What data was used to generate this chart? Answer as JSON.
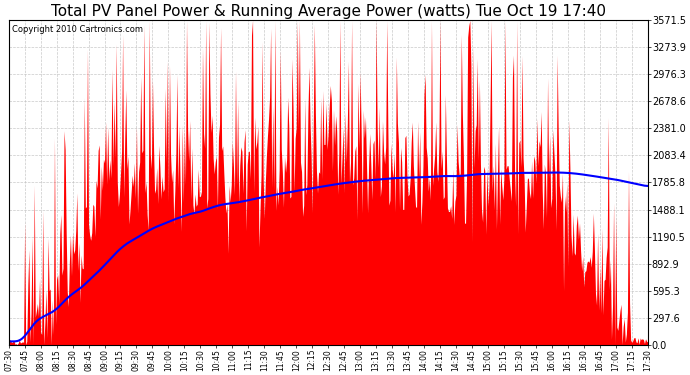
{
  "title": "Total PV Panel Power & Running Average Power (watts) Tue Oct 19 17:40",
  "copyright": "Copyright 2010 Cartronics.com",
  "yticks": [
    0.0,
    297.6,
    595.3,
    892.9,
    1190.5,
    1488.1,
    1785.8,
    2083.4,
    2381.0,
    2678.6,
    2976.3,
    3273.9,
    3571.5
  ],
  "ymax": 3571.5,
  "ymin": 0.0,
  "bar_color": "#FF0000",
  "line_color": "#0000FF",
  "bg_color": "#FFFFFF",
  "title_fontsize": 11,
  "xtick_labels": [
    "07:30",
    "07:45",
    "08:00",
    "08:15",
    "08:30",
    "08:45",
    "09:00",
    "09:15",
    "09:30",
    "09:45",
    "10:00",
    "10:15",
    "10:30",
    "10:45",
    "11:00",
    "11:15",
    "11:30",
    "11:45",
    "12:00",
    "12:15",
    "12:30",
    "12:45",
    "13:00",
    "13:15",
    "13:30",
    "13:45",
    "14:00",
    "14:15",
    "14:30",
    "14:45",
    "15:00",
    "15:15",
    "15:30",
    "15:45",
    "16:00",
    "16:15",
    "16:30",
    "16:45",
    "17:00",
    "17:15",
    "17:30"
  ]
}
